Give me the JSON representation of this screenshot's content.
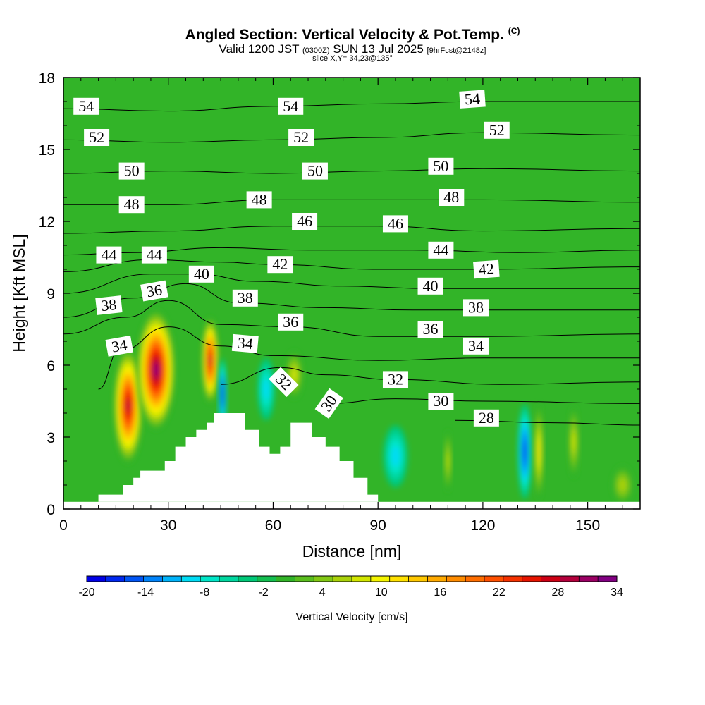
{
  "header": {
    "title": "Angled Section: Vertical Velocity & Pot.Temp.",
    "title_tag": "(C)",
    "valid_prefix": "Valid 1200 JST",
    "valid_utc": "(0300Z)",
    "valid_date": "SUN 13 Jul 2025",
    "forecast_tag": "[9hrFcst@2148z]",
    "slice": "slice X,Y= 34,23@135°"
  },
  "chart_data": {
    "type": "heatmap",
    "xlabel": "Distance [nm]",
    "ylabel": "Height [Kft MSL]",
    "xlim": [
      0,
      165
    ],
    "ylim": [
      0,
      18
    ],
    "x_ticks": [
      "0",
      "30",
      "60",
      "90",
      "120",
      "150"
    ],
    "x_tick_values": [
      0,
      30,
      60,
      90,
      120,
      150
    ],
    "y_ticks": [
      "0",
      "3",
      "6",
      "9",
      "12",
      "15",
      "18"
    ],
    "y_tick_values": [
      0,
      3,
      6,
      9,
      12,
      15,
      18
    ],
    "colorbar": {
      "label": "Vertical Velocity [cm/s]",
      "tick_labels": [
        "-20",
        "-14",
        "-8",
        "-2",
        "4",
        "10",
        "16",
        "22",
        "28",
        "34"
      ],
      "min": -20,
      "max": 34,
      "step": 2,
      "colors": [
        "#0000e6",
        "#0028f0",
        "#0055f5",
        "#0083fa",
        "#00b3fa",
        "#00dcf5",
        "#00e6c8",
        "#00d7a0",
        "#00c878",
        "#14be50",
        "#32b428",
        "#5abe1e",
        "#82c814",
        "#aad20a",
        "#d2e600",
        "#f5f500",
        "#ffe100",
        "#ffc800",
        "#ffaa00",
        "#ff8c00",
        "#ff6e00",
        "#ff5000",
        "#f53200",
        "#e61400",
        "#cd0014",
        "#b4003c",
        "#9b0064",
        "#820082"
      ]
    },
    "velocity_cells": [
      {
        "x": 18.5,
        "y": 4.3,
        "rx": 4.2,
        "ry": 2.4,
        "value": 30
      },
      {
        "x": 26.5,
        "y": 5.8,
        "rx": 5.5,
        "ry": 2.5,
        "value": 34
      },
      {
        "x": 42,
        "y": 6.2,
        "rx": 2.4,
        "ry": 1.8,
        "value": 30
      },
      {
        "x": 45.5,
        "y": 4.8,
        "rx": 1.2,
        "ry": 1.5,
        "value": -18
      },
      {
        "x": 58,
        "y": 5.0,
        "rx": 2.5,
        "ry": 1.3,
        "value": -8
      },
      {
        "x": 66,
        "y": 5.6,
        "rx": 2.5,
        "ry": 1.0,
        "value": 8
      },
      {
        "x": 95,
        "y": 2.2,
        "rx": 3.5,
        "ry": 1.3,
        "value": -9
      },
      {
        "x": 110,
        "y": 2.0,
        "rx": 1.0,
        "ry": 1.3,
        "value": 8
      },
      {
        "x": 132,
        "y": 2.4,
        "rx": 2.0,
        "ry": 2.0,
        "value": -16
      },
      {
        "x": 136,
        "y": 2.4,
        "rx": 1.3,
        "ry": 2.0,
        "value": 12
      },
      {
        "x": 146,
        "y": 2.8,
        "rx": 1.5,
        "ry": 1.5,
        "value": 8
      },
      {
        "x": 160,
        "y": 1.0,
        "rx": 3.0,
        "ry": 0.8,
        "value": 6
      }
    ],
    "terrain": [
      [
        10,
        0.3
      ],
      [
        10,
        0.6
      ],
      [
        17,
        0.6
      ],
      [
        17,
        1.0
      ],
      [
        20,
        1.0
      ],
      [
        20,
        1.3
      ],
      [
        22,
        1.3
      ],
      [
        22,
        1.6
      ],
      [
        29,
        1.6
      ],
      [
        29,
        2.0
      ],
      [
        32,
        2.0
      ],
      [
        32,
        2.6
      ],
      [
        35,
        2.6
      ],
      [
        35,
        3.0
      ],
      [
        38,
        3.0
      ],
      [
        38,
        3.3
      ],
      [
        41,
        3.3
      ],
      [
        41,
        3.6
      ],
      [
        43,
        3.6
      ],
      [
        43,
        4.0
      ],
      [
        52,
        4.0
      ],
      [
        52,
        3.3
      ],
      [
        56,
        3.3
      ],
      [
        56,
        2.6
      ],
      [
        59,
        2.6
      ],
      [
        59,
        2.3
      ],
      [
        62,
        2.3
      ],
      [
        62,
        2.6
      ],
      [
        65,
        2.6
      ],
      [
        65,
        3.6
      ],
      [
        71,
        3.6
      ],
      [
        71,
        3.0
      ],
      [
        75,
        3.0
      ],
      [
        75,
        2.6
      ],
      [
        79,
        2.6
      ],
      [
        79,
        2.0
      ],
      [
        83,
        2.0
      ],
      [
        83,
        1.3
      ],
      [
        87,
        1.3
      ],
      [
        87,
        0.6
      ],
      [
        90,
        0.6
      ],
      [
        90,
        0.3
      ]
    ],
    "theta_contours": [
      {
        "label": "28",
        "points": [
          [
            112,
            3.7
          ],
          [
            140,
            3.6
          ],
          [
            165,
            3.5
          ]
        ]
      },
      {
        "label": "30",
        "points": [
          [
            75,
            4.4
          ],
          [
            95,
            4.6
          ],
          [
            120,
            4.5
          ],
          [
            165,
            4.4
          ]
        ]
      },
      {
        "label": "32",
        "points": [
          [
            45,
            5.2
          ],
          [
            62,
            5.9
          ],
          [
            75,
            5.6
          ],
          [
            95,
            5.4
          ],
          [
            125,
            5.2
          ],
          [
            165,
            5.3
          ]
        ]
      },
      {
        "label": "34",
        "points": [
          [
            10,
            5.0
          ],
          [
            16,
            6.6
          ],
          [
            30,
            7.6
          ],
          [
            45,
            6.8
          ],
          [
            60,
            6.4
          ],
          [
            90,
            6.2
          ],
          [
            120,
            6.3
          ],
          [
            165,
            6.3
          ]
        ]
      },
      {
        "label": "36",
        "points": [
          [
            0,
            7.3
          ],
          [
            18,
            8.0
          ],
          [
            30,
            8.7
          ],
          [
            45,
            7.7
          ],
          [
            65,
            7.6
          ],
          [
            90,
            7.2
          ],
          [
            120,
            7.2
          ],
          [
            165,
            7.3
          ]
        ]
      },
      {
        "label": "38",
        "points": [
          [
            0,
            8.0
          ],
          [
            20,
            8.8
          ],
          [
            35,
            9.4
          ],
          [
            50,
            8.6
          ],
          [
            75,
            8.4
          ],
          [
            100,
            8.3
          ],
          [
            130,
            8.3
          ],
          [
            165,
            8.3
          ]
        ]
      },
      {
        "label": "40",
        "points": [
          [
            0,
            9.0
          ],
          [
            25,
            9.8
          ],
          [
            38,
            9.8
          ],
          [
            55,
            9.5
          ],
          [
            80,
            9.3
          ],
          [
            105,
            9.2
          ],
          [
            135,
            9.2
          ],
          [
            165,
            9.2
          ]
        ]
      },
      {
        "label": "42",
        "points": [
          [
            0,
            9.9
          ],
          [
            25,
            10.4
          ],
          [
            45,
            10.3
          ],
          [
            60,
            10.2
          ],
          [
            90,
            10.0
          ],
          [
            120,
            10.0
          ],
          [
            165,
            10.1
          ]
        ]
      },
      {
        "label": "44",
        "points": [
          [
            0,
            10.6
          ],
          [
            20,
            10.7
          ],
          [
            45,
            10.9
          ],
          [
            70,
            10.8
          ],
          [
            100,
            10.8
          ],
          [
            130,
            10.7
          ],
          [
            165,
            10.8
          ]
        ]
      },
      {
        "label": "46",
        "points": [
          [
            0,
            11.5
          ],
          [
            30,
            11.6
          ],
          [
            60,
            11.8
          ],
          [
            90,
            11.8
          ],
          [
            120,
            11.6
          ],
          [
            165,
            11.7
          ]
        ]
      },
      {
        "label": "48",
        "points": [
          [
            0,
            12.7
          ],
          [
            30,
            12.7
          ],
          [
            60,
            12.9
          ],
          [
            90,
            12.9
          ],
          [
            120,
            12.9
          ],
          [
            165,
            12.8
          ]
        ]
      },
      {
        "label": "50",
        "points": [
          [
            0,
            14.0
          ],
          [
            30,
            14.1
          ],
          [
            60,
            14.0
          ],
          [
            90,
            14.1
          ],
          [
            120,
            14.2
          ],
          [
            165,
            14.1
          ]
        ]
      },
      {
        "label": "52",
        "points": [
          [
            0,
            15.4
          ],
          [
            30,
            15.3
          ],
          [
            60,
            15.4
          ],
          [
            90,
            15.5
          ],
          [
            120,
            15.7
          ],
          [
            165,
            15.6
          ]
        ]
      },
      {
        "label": "54",
        "points": [
          [
            0,
            16.7
          ],
          [
            30,
            16.6
          ],
          [
            60,
            16.8
          ],
          [
            90,
            16.9
          ],
          [
            120,
            17.0
          ],
          [
            165,
            17.0
          ]
        ]
      }
    ],
    "contour_labels": [
      {
        "text": "54",
        "x": 6.5,
        "y": 16.8,
        "angle": 0
      },
      {
        "text": "54",
        "x": 65,
        "y": 16.8,
        "angle": 0
      },
      {
        "text": "54",
        "x": 117,
        "y": 17.1,
        "angle": -4
      },
      {
        "text": "52",
        "x": 9.5,
        "y": 15.5,
        "angle": 0
      },
      {
        "text": "52",
        "x": 68,
        "y": 15.5,
        "angle": 0
      },
      {
        "text": "52",
        "x": 124,
        "y": 15.8,
        "angle": 0
      },
      {
        "text": "50",
        "x": 19.5,
        "y": 14.1,
        "angle": 0
      },
      {
        "text": "50",
        "x": 72,
        "y": 14.1,
        "angle": 0
      },
      {
        "text": "50",
        "x": 108,
        "y": 14.3,
        "angle": 0
      },
      {
        "text": "48",
        "x": 19.5,
        "y": 12.7,
        "angle": 0
      },
      {
        "text": "48",
        "x": 56,
        "y": 12.9,
        "angle": 0
      },
      {
        "text": "48",
        "x": 111,
        "y": 13.0,
        "angle": 0
      },
      {
        "text": "46",
        "x": 69,
        "y": 12.0,
        "angle": 0
      },
      {
        "text": "46",
        "x": 95,
        "y": 11.9,
        "angle": 0
      },
      {
        "text": "44",
        "x": 13,
        "y": 10.6,
        "angle": 0
      },
      {
        "text": "44",
        "x": 26,
        "y": 10.6,
        "angle": 0
      },
      {
        "text": "44",
        "x": 108,
        "y": 10.8,
        "angle": 0
      },
      {
        "text": "42",
        "x": 62,
        "y": 10.2,
        "angle": 0
      },
      {
        "text": "42",
        "x": 121,
        "y": 10.0,
        "angle": -4
      },
      {
        "text": "40",
        "x": 39.5,
        "y": 9.8,
        "angle": 0
      },
      {
        "text": "40",
        "x": 105,
        "y": 9.3,
        "angle": 0
      },
      {
        "text": "38",
        "x": 13,
        "y": 8.5,
        "angle": -6
      },
      {
        "text": "38",
        "x": 52,
        "y": 8.8,
        "angle": 0
      },
      {
        "text": "38",
        "x": 118,
        "y": 8.4,
        "angle": 0
      },
      {
        "text": "36",
        "x": 26,
        "y": 9.1,
        "angle": -10
      },
      {
        "text": "36",
        "x": 65,
        "y": 7.8,
        "angle": 0
      },
      {
        "text": "36",
        "x": 105,
        "y": 7.5,
        "angle": 0
      },
      {
        "text": "34",
        "x": 16,
        "y": 6.8,
        "angle": -10
      },
      {
        "text": "34",
        "x": 52,
        "y": 6.9,
        "angle": 5
      },
      {
        "text": "34",
        "x": 118,
        "y": 6.8,
        "angle": 0
      },
      {
        "text": "32",
        "x": 63,
        "y": 5.3,
        "angle": 45
      },
      {
        "text": "32",
        "x": 95,
        "y": 5.4,
        "angle": 0
      },
      {
        "text": "30",
        "x": 76,
        "y": 4.4,
        "angle": -55
      },
      {
        "text": "30",
        "x": 108,
        "y": 4.5,
        "angle": 0
      },
      {
        "text": "28",
        "x": 121,
        "y": 3.8,
        "angle": 0
      }
    ]
  }
}
